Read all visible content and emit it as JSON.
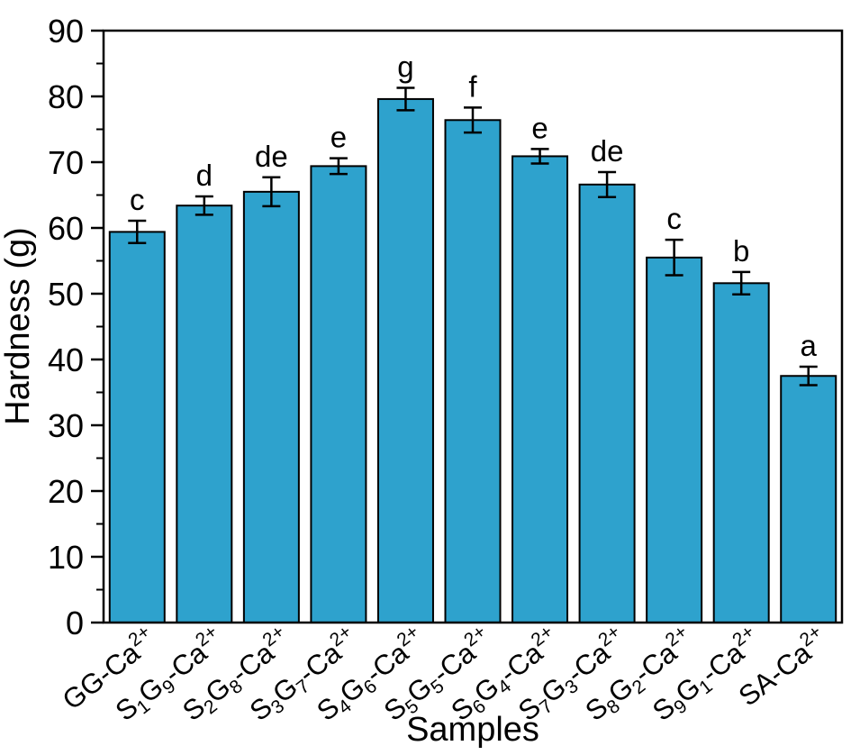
{
  "figure": {
    "background": "#FFFFFF",
    "colors": {
      "bar_fill": "#2EA2CD",
      "bar_edge": "#000000",
      "axis": "#000000",
      "text": "#000000",
      "error_bar": "#000000"
    }
  },
  "chart_data": {
    "type": "bar",
    "title": "",
    "xlabel": "Samples",
    "ylabel": "Hardness (g)",
    "ylim": [
      0,
      90
    ],
    "ytick_step": 10,
    "yminor_step": 5,
    "yticks": [
      0,
      10,
      20,
      30,
      40,
      50,
      60,
      70,
      80,
      90
    ],
    "grid": false,
    "legend": null,
    "categories_plain": [
      "GG-Ca2+",
      "S1G9-Ca2+",
      "S2G8-Ca2+",
      "S3G7-Ca2+",
      "S4G6-Ca2+",
      "S5G5-Ca2+",
      "S6G4-Ca2+",
      "S7G3-Ca2+",
      "S8G2-Ca2+",
      "S9G1-Ca2+",
      "SA-Ca2+"
    ],
    "categories_rich": [
      [
        [
          "t",
          "GG-Ca"
        ],
        [
          "sup",
          "2+"
        ]
      ],
      [
        [
          "t",
          "S"
        ],
        [
          "sub",
          "1"
        ],
        [
          "t",
          "G"
        ],
        [
          "sub",
          "9"
        ],
        [
          "t",
          "-Ca"
        ],
        [
          "sup",
          "2+"
        ]
      ],
      [
        [
          "t",
          "S"
        ],
        [
          "sub",
          "2"
        ],
        [
          "t",
          "G"
        ],
        [
          "sub",
          "8"
        ],
        [
          "t",
          "-Ca"
        ],
        [
          "sup",
          "2+"
        ]
      ],
      [
        [
          "t",
          "S"
        ],
        [
          "sub",
          "3"
        ],
        [
          "t",
          "G"
        ],
        [
          "sub",
          "7"
        ],
        [
          "t",
          "-Ca"
        ],
        [
          "sup",
          "2+"
        ]
      ],
      [
        [
          "t",
          "S"
        ],
        [
          "sub",
          "4"
        ],
        [
          "t",
          "G"
        ],
        [
          "sub",
          "6"
        ],
        [
          "t",
          "-Ca"
        ],
        [
          "sup",
          "2+"
        ]
      ],
      [
        [
          "t",
          "S"
        ],
        [
          "sub",
          "5"
        ],
        [
          "t",
          "G"
        ],
        [
          "sub",
          "5"
        ],
        [
          "t",
          "-Ca"
        ],
        [
          "sup",
          "2+"
        ]
      ],
      [
        [
          "t",
          "S"
        ],
        [
          "sub",
          "6"
        ],
        [
          "t",
          "G"
        ],
        [
          "sub",
          "4"
        ],
        [
          "t",
          "-Ca"
        ],
        [
          "sup",
          "2+"
        ]
      ],
      [
        [
          "t",
          "S"
        ],
        [
          "sub",
          "7"
        ],
        [
          "t",
          "G"
        ],
        [
          "sub",
          "3"
        ],
        [
          "t",
          "-Ca"
        ],
        [
          "sup",
          "2+"
        ]
      ],
      [
        [
          "t",
          "S"
        ],
        [
          "sub",
          "8"
        ],
        [
          "t",
          "G"
        ],
        [
          "sub",
          "2"
        ],
        [
          "t",
          "-Ca"
        ],
        [
          "sup",
          "2+"
        ]
      ],
      [
        [
          "t",
          "S"
        ],
        [
          "sub",
          "9"
        ],
        [
          "t",
          "G"
        ],
        [
          "sub",
          "1"
        ],
        [
          "t",
          "-Ca"
        ],
        [
          "sup",
          "2+"
        ]
      ],
      [
        [
          "t",
          "SA-Ca"
        ],
        [
          "sup",
          "2+"
        ]
      ]
    ],
    "values": [
      59.4,
      63.4,
      65.5,
      69.4,
      79.6,
      76.4,
      70.9,
      66.6,
      55.5,
      51.6,
      37.5
    ],
    "errors": [
      1.7,
      1.4,
      2.2,
      1.2,
      1.7,
      1.9,
      1.1,
      1.9,
      2.7,
      1.7,
      1.4
    ],
    "sig_letters": [
      "c",
      "d",
      "de",
      "e",
      "g",
      "f",
      "e",
      "de",
      "c",
      "b",
      "a"
    ]
  }
}
